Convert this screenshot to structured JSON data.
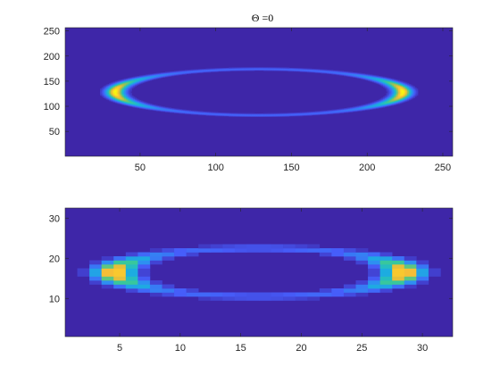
{
  "chart_data": [
    {
      "type": "heatmap",
      "title": "Θ =0",
      "xlabel": "",
      "ylabel": "",
      "grid": 256,
      "xlim": [
        0.5,
        256.5
      ],
      "ylim": [
        0.5,
        256.5
      ],
      "xticks": [
        50,
        100,
        150,
        200,
        250
      ],
      "yticks": [
        50,
        100,
        150,
        200,
        250
      ],
      "ellipse": {
        "center": [
          128.5,
          128.5
        ],
        "semi_axis_x": 95,
        "semi_axis_y": 46,
        "ring_width": 4,
        "peak_left_x": 33,
        "peak_right_x": 223,
        "peak_y": 128
      },
      "colormap": "parula",
      "background_color": "#3e26a8",
      "peak_color": "#f9fb0e"
    },
    {
      "type": "heatmap",
      "title": "",
      "xlabel": "",
      "ylabel": "",
      "grid": 32,
      "xlim": [
        0.5,
        32.5
      ],
      "ylim": [
        0.5,
        32.5
      ],
      "xticks": [
        5,
        10,
        15,
        20,
        25,
        30
      ],
      "yticks": [
        10,
        20,
        30
      ],
      "ellipse": {
        "center": [
          16.5,
          16.5
        ],
        "semi_axis_x": 12,
        "semi_axis_y": 6,
        "ring_width": 1.1,
        "peak_left_x": 4.5,
        "peak_right_x": 28.5,
        "peak_y": 16.5
      },
      "colormap": "parula",
      "background_color": "#3e26a8",
      "peak_color": "#f9fb0e"
    }
  ]
}
